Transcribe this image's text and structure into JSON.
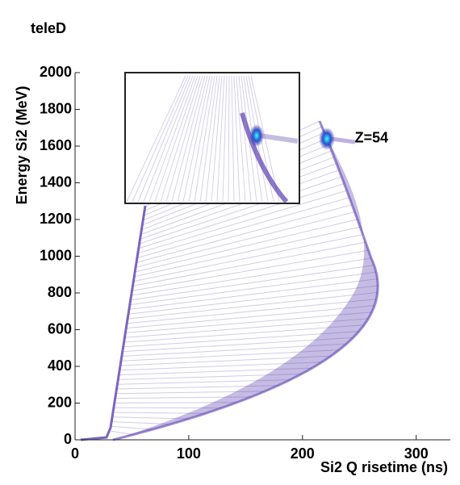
{
  "chart_data": {
    "type": "hist2d",
    "title": "teleD",
    "xlabel": "Si2 Q risetime (ns)",
    "ylabel": "Energy Si2 (MeV)",
    "xlim": [
      0,
      330
    ],
    "ylim": [
      0,
      2000
    ],
    "xticks": [
      0,
      100,
      200,
      300
    ],
    "yticks": [
      0,
      200,
      400,
      600,
      800,
      1000,
      1200,
      1400,
      1600,
      1800,
      2000
    ],
    "color": "#5a3fb0",
    "annotations": [
      {
        "text": "Z=54",
        "x": 246,
        "y": 1640
      }
    ]
  }
}
